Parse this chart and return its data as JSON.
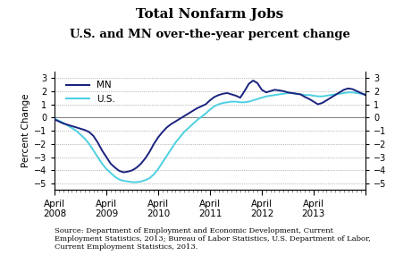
{
  "title_line1": "Total Nonfarm Jobs",
  "title_line2": "U.S. and MN over-the-year percent change",
  "ylabel": "Percent Change",
  "ylim": [
    -5.5,
    3.5
  ],
  "yticks": [
    -5,
    -4,
    -3,
    -2,
    -1,
    0,
    1,
    2,
    3
  ],
  "mn_color": "#1a237e",
  "us_color": "#4dd0e1",
  "source_text": "Source: Department of Employment and Economic Development, Current\nEmployment Statistics, 2013; Bureau of Labor Statistics, U.S. Department of Labor,\nCurrent Employment Statistics, 2013.",
  "mn_data": [
    -0.15,
    -0.3,
    -0.45,
    -0.55,
    -0.65,
    -0.75,
    -0.85,
    -0.95,
    -1.1,
    -1.4,
    -1.9,
    -2.5,
    -3.0,
    -3.5,
    -3.8,
    -4.05,
    -4.15,
    -4.1,
    -4.0,
    -3.8,
    -3.5,
    -3.1,
    -2.6,
    -2.0,
    -1.5,
    -1.1,
    -0.75,
    -0.5,
    -0.3,
    -0.1,
    0.1,
    0.3,
    0.5,
    0.7,
    0.85,
    1.0,
    1.3,
    1.55,
    1.7,
    1.8,
    1.85,
    1.75,
    1.65,
    1.5,
    2.0,
    2.55,
    2.8,
    2.6,
    2.1,
    1.9,
    2.0,
    2.1,
    2.05,
    2.0,
    1.9,
    1.85,
    1.8,
    1.75,
    1.55,
    1.4,
    1.2,
    1.0,
    1.1,
    1.3,
    1.5,
    1.7,
    1.9,
    2.1,
    2.2,
    2.15,
    2.0,
    1.85,
    1.7
  ],
  "us_data": [
    -0.1,
    -0.25,
    -0.4,
    -0.6,
    -0.8,
    -1.0,
    -1.3,
    -1.6,
    -2.0,
    -2.5,
    -3.0,
    -3.5,
    -3.9,
    -4.2,
    -4.5,
    -4.7,
    -4.8,
    -4.85,
    -4.9,
    -4.9,
    -4.85,
    -4.75,
    -4.6,
    -4.3,
    -3.9,
    -3.4,
    -2.9,
    -2.4,
    -1.9,
    -1.5,
    -1.1,
    -0.8,
    -0.5,
    -0.2,
    0.05,
    0.3,
    0.6,
    0.85,
    1.0,
    1.1,
    1.15,
    1.2,
    1.2,
    1.15,
    1.15,
    1.2,
    1.3,
    1.4,
    1.5,
    1.6,
    1.65,
    1.7,
    1.75,
    1.8,
    1.85,
    1.85,
    1.8,
    1.75,
    1.7,
    1.7,
    1.65,
    1.6,
    1.6,
    1.65,
    1.7,
    1.75,
    1.8,
    1.85,
    1.9,
    1.9,
    1.85,
    1.8,
    1.75
  ],
  "n_points": 73,
  "x_tick_positions": [
    0,
    12,
    24,
    36,
    48,
    60,
    72
  ],
  "x_tick_labels_show": [
    "April\n2008",
    "April\n2009",
    "April\n2010",
    "April\n2011",
    "April\n2012",
    "April\n2013",
    ""
  ]
}
